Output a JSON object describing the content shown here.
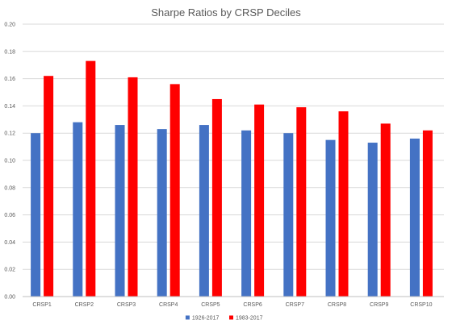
{
  "chart_data": {
    "type": "bar",
    "title": "Sharpe Ratios by CRSP Deciles",
    "xlabel": "",
    "ylabel": "",
    "ylim": [
      0,
      0.2
    ],
    "yticks": [
      "0.00",
      "0.02",
      "0.04",
      "0.06",
      "0.08",
      "0.10",
      "0.12",
      "0.14",
      "0.16",
      "0.18",
      "0.20"
    ],
    "grid": true,
    "legend_position": "bottom",
    "categories": [
      "CRSP1",
      "CRSP2",
      "CRSP3",
      "CRSP4",
      "CRSP5",
      "CRSP6",
      "CRSP7",
      "CRSP8",
      "CRSP9",
      "CRSP10"
    ],
    "series": [
      {
        "name": "1926-2017",
        "color": "#4472C4",
        "values": [
          0.12,
          0.128,
          0.126,
          0.123,
          0.126,
          0.122,
          0.12,
          0.115,
          0.113,
          0.116
        ]
      },
      {
        "name": "1983-2017",
        "color": "#FF0000",
        "values": [
          0.162,
          0.173,
          0.161,
          0.156,
          0.145,
          0.141,
          0.139,
          0.136,
          0.127,
          0.122
        ]
      }
    ]
  }
}
